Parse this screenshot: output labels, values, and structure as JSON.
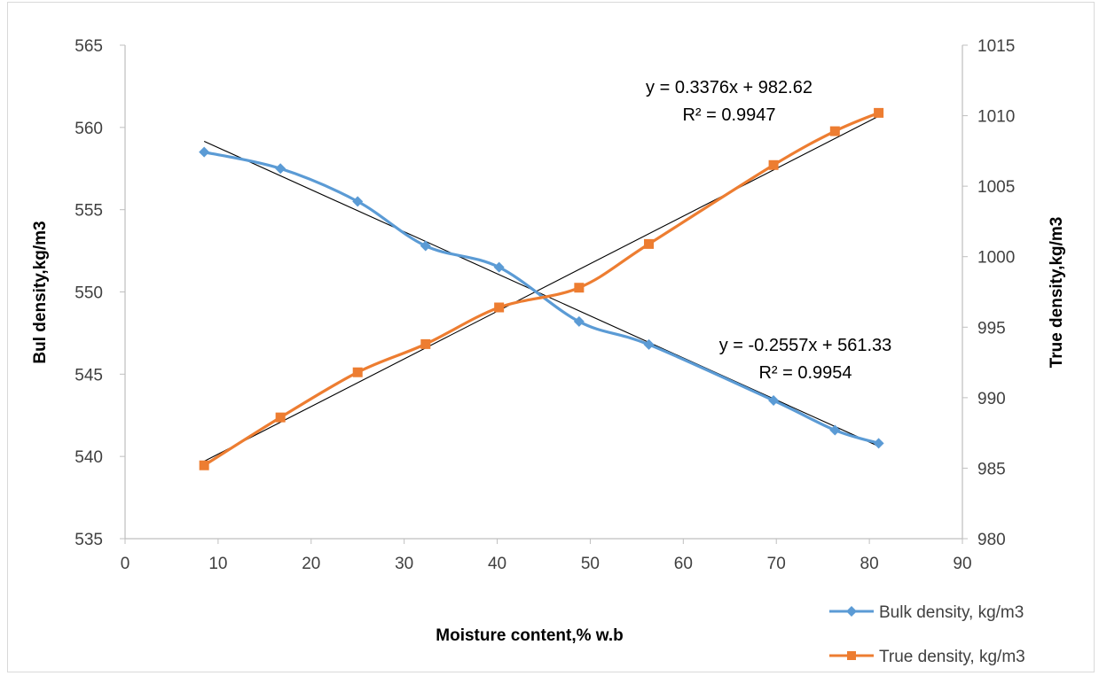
{
  "chart_data": {
    "type": "line",
    "xlabel": "Moisture content,% w.b",
    "ylabel_left": "Bul density,kg/m3",
    "ylabel_right": "True density,kg/m3",
    "xlim": [
      0,
      90
    ],
    "ylim_left": [
      535,
      565
    ],
    "ylim_right": [
      980,
      1015
    ],
    "x_ticks": [
      "0",
      "10",
      "20",
      "30",
      "40",
      "50",
      "60",
      "70",
      "80",
      "90"
    ],
    "y_left_ticks": [
      "535",
      "540",
      "545",
      "550",
      "555",
      "560",
      "565"
    ],
    "y_right_ticks": [
      "980",
      "985",
      "990",
      "995",
      "1000",
      "1005",
      "1010",
      "1015"
    ],
    "grid": false,
    "legend_position": "bottom-right",
    "series": [
      {
        "name": "Bulk density, kg/m3",
        "axis": "left",
        "color": "#5b9bd5",
        "marker": "diamond",
        "x": [
          8.5,
          16.7,
          25.0,
          32.3,
          40.2,
          48.8,
          56.3,
          69.7,
          76.3,
          81.0
        ],
        "y": [
          558.5,
          557.5,
          555.5,
          552.8,
          551.5,
          548.2,
          546.8,
          543.4,
          541.6,
          540.8
        ]
      },
      {
        "name": "True density, kg/m3",
        "axis": "right",
        "color": "#ed7d31",
        "marker": "square",
        "x": [
          8.5,
          16.7,
          25.0,
          32.3,
          40.2,
          48.8,
          56.3,
          69.7,
          76.3,
          81.0
        ],
        "y": [
          985.2,
          988.6,
          991.8,
          993.8,
          996.4,
          997.8,
          1000.9,
          1006.5,
          1008.9,
          1010.2
        ]
      }
    ],
    "trendlines": [
      {
        "axis": "left",
        "slope": -0.2557,
        "intercept": 561.33,
        "x_range": [
          8.5,
          81.0
        ],
        "equation": "y = -0.2557x + 561.33",
        "r2": "R² = 0.9954",
        "color": "#000000"
      },
      {
        "axis": "right",
        "slope": 0.3376,
        "intercept": 982.62,
        "x_range": [
          8.5,
          81.0
        ],
        "equation": "y = 0.3376x + 982.62",
        "r2": "R² = 0.9947",
        "color": "#000000"
      }
    ]
  }
}
